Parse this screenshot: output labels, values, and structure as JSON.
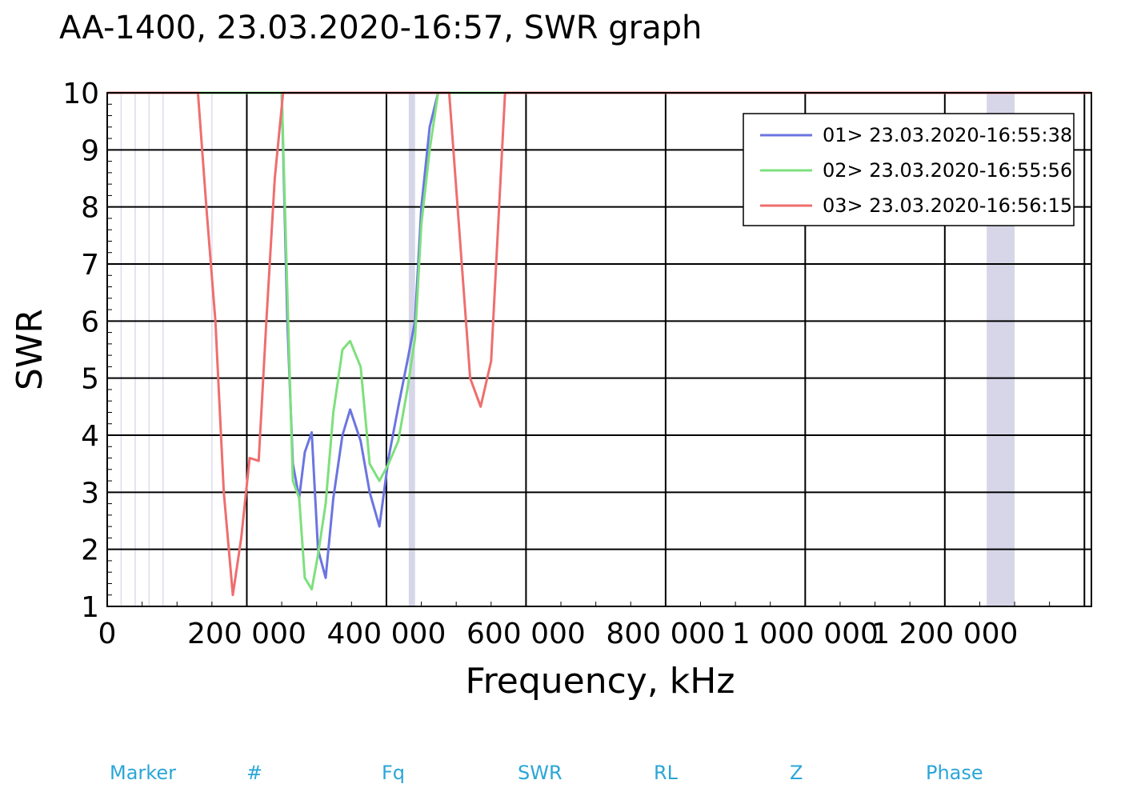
{
  "chart_data": {
    "type": "line",
    "title": "AA-1400, 23.03.2020-16:57, SWR graph",
    "xlabel": "Frequency, kHz",
    "ylabel": "SWR",
    "xlim": [
      0,
      1410000
    ],
    "ylim": [
      1,
      10
    ],
    "xticks": [
      0,
      200000,
      400000,
      600000,
      800000,
      1000000,
      1200000
    ],
    "xtick_labels": [
      "0",
      "200 000",
      "400 000",
      "600 000",
      "800 000",
      "1 000 000",
      "1 200 000"
    ],
    "yticks": [
      1,
      2,
      3,
      4,
      5,
      6,
      7,
      8,
      9,
      10
    ],
    "ytick_labels": [
      "1",
      "2",
      "3",
      "4",
      "5",
      "6",
      "7",
      "8",
      "9",
      "10"
    ],
    "grid": true,
    "legend_position": "top-right",
    "shaded_bands": [
      {
        "x0": 432000,
        "x1": 441000,
        "color": "#d6d6e8"
      },
      {
        "x0": 1260000,
        "x1": 1300000,
        "color": "#d6d6e8"
      }
    ],
    "series": [
      {
        "name": "01> 23.03.2020-16:55:38",
        "color": "#6b75e0",
        "x": [
          0,
          240000,
          250000,
          258000,
          266000,
          275000,
          283000,
          293000,
          302000,
          313000,
          324000,
          337000,
          348000,
          363000,
          376000,
          390000,
          403000,
          417000,
          430000,
          441000,
          450000,
          462000,
          474000,
          485000,
          1410000
        ],
        "y": [
          10,
          10,
          10,
          6.0,
          3.5,
          2.9,
          3.7,
          4.05,
          2.0,
          1.5,
          2.9,
          4.0,
          4.45,
          3.9,
          3.0,
          2.4,
          3.6,
          4.5,
          5.3,
          6.0,
          8.0,
          9.4,
          10,
          10,
          10
        ]
      },
      {
        "name": "02> 23.03.2020-16:55:56",
        "color": "#7de07d",
        "x": [
          0,
          240000,
          250000,
          258000,
          266000,
          275000,
          283000,
          293000,
          302000,
          313000,
          324000,
          337000,
          348000,
          363000,
          376000,
          390000,
          403000,
          417000,
          430000,
          441000,
          450000,
          462000,
          474000,
          485000,
          1410000
        ],
        "y": [
          10,
          10,
          10,
          6.5,
          3.2,
          2.9,
          1.5,
          1.3,
          1.9,
          2.8,
          4.4,
          5.5,
          5.65,
          5.2,
          3.5,
          3.2,
          3.5,
          3.9,
          4.8,
          5.7,
          7.7,
          9.0,
          10,
          10,
          10
        ]
      },
      {
        "name": "03> 23.03.2020-16:56:15",
        "color": "#ef6e6e",
        "x": [
          0,
          130000,
          142000,
          155000,
          167000,
          180000,
          192000,
          204000,
          217000,
          228000,
          240000,
          252000,
          262000,
          490000,
          505000,
          520000,
          535000,
          550000,
          570000,
          1410000
        ],
        "y": [
          10,
          10,
          8.0,
          6.0,
          3.0,
          1.2,
          2.2,
          3.6,
          3.55,
          6.0,
          8.5,
          10,
          10,
          10,
          7.5,
          5.0,
          4.5,
          5.3,
          10,
          10
        ]
      }
    ]
  },
  "footer": {
    "columns": [
      "Marker",
      "#",
      "Fq",
      "SWR",
      "RL",
      "Z",
      "Phase"
    ]
  }
}
